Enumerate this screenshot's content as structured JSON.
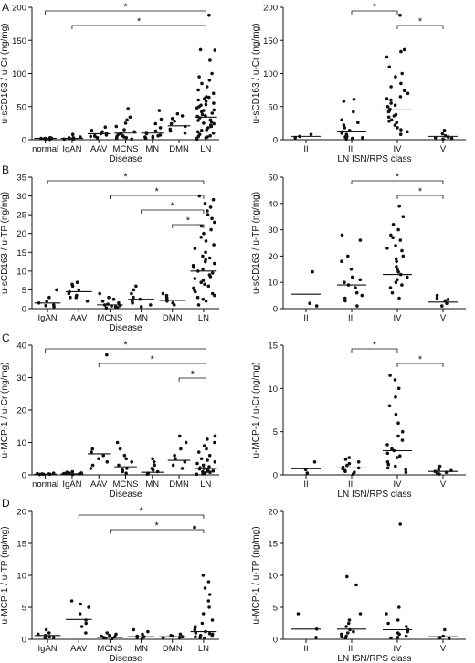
{
  "panel_letters": [
    "A",
    "B",
    "C",
    "D"
  ],
  "chart_data": [
    {
      "type": "scatter",
      "panel": "A",
      "ylabel": "u-sCD163 / u-Cr (ng/mg)",
      "xlabel": "Disease",
      "ylim": [
        0,
        200
      ],
      "yticks": [
        0,
        50,
        100,
        150,
        200
      ],
      "categories": [
        "normal",
        "IgAN",
        "AAV",
        "MCNS",
        "MN",
        "DMN",
        "LN"
      ],
      "medians": [
        2,
        2,
        9,
        10,
        10,
        21,
        34
      ],
      "points": [
        [
          0.5,
          1,
          1.5,
          2,
          2.5,
          3,
          2,
          1
        ],
        [
          1,
          2,
          3,
          4,
          8,
          2,
          1,
          2,
          3
        ],
        [
          3,
          5,
          7,
          9,
          10,
          12,
          14,
          19,
          5,
          6
        ],
        [
          1,
          3,
          5,
          8,
          10,
          12,
          15,
          20,
          25,
          30,
          34,
          47,
          2,
          4,
          6,
          9
        ],
        [
          2,
          4,
          6,
          9,
          11,
          13,
          18,
          24,
          31,
          44,
          3,
          7,
          5
        ],
        [
          10,
          13,
          16,
          20,
          24,
          28,
          32,
          36,
          39
        ],
        [
          5,
          10,
          15,
          20,
          25,
          30,
          35,
          40,
          45,
          50,
          55,
          60,
          65,
          70,
          80,
          90,
          100,
          120,
          135,
          136,
          188,
          8,
          12,
          18,
          22,
          27,
          33,
          38,
          42,
          48,
          52,
          58,
          62,
          3,
          6,
          14,
          24,
          29,
          36,
          44,
          53,
          64,
          75,
          85,
          95,
          1,
          2,
          4
        ]
      ],
      "brackets": [
        {
          "from": 0,
          "to": 6,
          "label": "*"
        },
        {
          "from": 1,
          "to": 6,
          "label": "*"
        }
      ]
    },
    {
      "type": "scatter",
      "panel": "A",
      "ylabel": "u-sCD163 / u-Cr (ng/mg)",
      "xlabel": "LN ISN/RPS class",
      "ylim": [
        0,
        200
      ],
      "yticks": [
        0,
        50,
        100,
        150,
        200
      ],
      "categories": [
        "II",
        "III",
        "IV",
        "V"
      ],
      "medians": [
        5,
        13,
        45,
        5
      ],
      "points": [
        [
          3,
          5,
          8
        ],
        [
          1,
          2,
          3,
          4,
          5,
          8,
          10,
          14,
          18,
          22,
          26,
          30,
          42,
          58,
          61,
          6,
          12
        ],
        [
          8,
          12,
          18,
          22,
          26,
          30,
          34,
          38,
          42,
          46,
          50,
          55,
          60,
          65,
          70,
          80,
          95,
          100,
          110,
          125,
          133,
          136,
          188,
          15,
          28,
          36,
          44,
          52,
          62,
          74,
          85
        ],
        [
          1,
          2,
          4,
          6,
          9,
          14,
          3
        ]
      ],
      "brackets": [
        {
          "from": 1,
          "to": 2,
          "label": "*"
        },
        {
          "from": 2,
          "to": 3,
          "label": "*"
        }
      ]
    },
    {
      "type": "scatter",
      "panel": "B",
      "ylabel": "u-sCD163 / u-TP (ng/mg)",
      "xlabel": "Disease",
      "ylim": [
        0,
        35
      ],
      "yticks": [
        0,
        5,
        10,
        15,
        20,
        25,
        30,
        35
      ],
      "categories": [
        "IgAN",
        "AAV",
        "MCNS",
        "MN",
        "DMN",
        "LN"
      ],
      "medians": [
        1.5,
        4.5,
        1,
        2.5,
        2.2,
        10
      ],
      "points": [
        [
          0.5,
          1,
          1.5,
          2,
          3,
          5,
          0.8
        ],
        [
          2,
          3,
          3.5,
          4,
          4.5,
          5,
          6,
          6.5,
          7,
          3
        ],
        [
          0.2,
          0.5,
          0.8,
          1,
          1.2,
          1.5,
          2,
          2.5,
          3,
          4,
          0.3,
          0.7
        ],
        [
          0.5,
          1,
          2,
          2.5,
          3,
          4,
          5,
          6,
          1.5
        ],
        [
          1,
          1.5,
          2,
          2.5,
          3,
          4,
          3.5
        ],
        [
          1,
          2,
          3,
          4,
          5,
          6,
          7,
          8,
          9,
          10,
          11,
          12,
          13,
          14,
          15,
          16,
          17,
          18,
          19,
          20,
          21,
          22,
          23,
          24,
          25,
          26,
          27,
          28,
          29,
          30,
          5.5,
          7.5,
          9.5,
          11.5,
          13.5,
          2.5,
          4.5,
          8.5,
          10.5,
          12.5,
          3.5,
          6.5
        ]
      ],
      "brackets": [
        {
          "from": 0,
          "to": 5,
          "label": "*"
        },
        {
          "from": 2,
          "to": 5,
          "label": "*"
        },
        {
          "from": 3,
          "to": 5,
          "label": "*"
        },
        {
          "from": 4,
          "to": 5,
          "label": "*"
        }
      ]
    },
    {
      "type": "scatter",
      "panel": "B",
      "ylabel": "u-sCD163 / u-TP (ng/mg)",
      "xlabel": "",
      "ylim": [
        0,
        50
      ],
      "yticks": [
        0,
        10,
        20,
        30,
        40,
        50
      ],
      "categories": [
        "II",
        "III",
        "IV",
        "V"
      ],
      "medians": [
        5.5,
        9,
        13,
        2.5
      ],
      "points": [
        [
          1,
          2,
          14
        ],
        [
          1,
          3,
          5,
          6,
          8,
          9,
          10,
          11,
          12,
          15,
          18,
          20,
          26,
          28,
          4
        ],
        [
          4,
          6,
          8,
          10,
          12,
          13,
          14,
          16,
          18,
          20,
          22,
          24,
          26,
          28,
          30,
          32,
          35,
          39,
          9,
          11,
          15,
          19,
          23,
          27
        ],
        [
          1,
          2,
          3,
          4,
          5,
          3.5
        ]
      ],
      "brackets": [
        {
          "from": 1,
          "to": 3,
          "label": "*"
        },
        {
          "from": 2,
          "to": 3,
          "label": "*"
        }
      ]
    },
    {
      "type": "scatter",
      "panel": "C",
      "ylabel": "u-MCP-1 / u-Cr (ng/mg)",
      "xlabel": "Disease",
      "ylim": [
        0,
        40
      ],
      "yticks": [
        0,
        10,
        20,
        30,
        40
      ],
      "categories": [
        "normal",
        "IgAN",
        "AAV",
        "MCNS",
        "MN",
        "DMN",
        "LN"
      ],
      "medians": [
        0.2,
        0.3,
        6.5,
        2.5,
        0.8,
        4.5,
        2
      ],
      "points": [
        [
          0.1,
          0.2,
          0.3,
          0.4,
          0.5,
          0.2,
          0.3
        ],
        [
          0.1,
          0.3,
          0.5,
          0.8,
          1,
          0.4,
          0.6
        ],
        [
          2,
          3,
          4,
          5,
          6,
          7,
          8,
          37
        ],
        [
          0.5,
          1,
          1.5,
          2,
          3,
          4,
          5,
          6,
          8,
          10
        ],
        [
          0.2,
          0.5,
          1,
          1.5,
          2,
          3,
          4,
          5
        ],
        [
          2,
          3,
          4,
          5,
          6,
          8,
          10,
          12
        ],
        [
          0.2,
          0.5,
          1,
          1.5,
          2,
          2.5,
          3,
          4,
          5,
          6,
          7,
          8,
          9,
          10,
          11,
          12,
          0.8,
          1.2,
          1.8,
          2.2,
          3.5,
          4.5,
          0.3,
          0.6,
          1.1
        ]
      ],
      "brackets": [
        {
          "from": 0,
          "to": 6,
          "label": "*"
        },
        {
          "from": 2,
          "to": 6,
          "label": "*"
        },
        {
          "from": 5,
          "to": 6,
          "label": "*"
        }
      ]
    },
    {
      "type": "scatter",
      "panel": "C",
      "ylabel": "u-MCP-1 / u-Cr (ng/mg)",
      "xlabel": "LN ISN/RPS class",
      "ylim": [
        0,
        15
      ],
      "yticks": [
        0,
        5,
        10,
        15
      ],
      "categories": [
        "II",
        "III",
        "IV",
        "V"
      ],
      "medians": [
        0.7,
        0.8,
        2.8,
        0.4
      ],
      "points": [
        [
          0.2,
          1.5,
          0.6
        ],
        [
          0.1,
          0.3,
          0.5,
          0.7,
          0.9,
          1.1,
          1.3,
          1.5,
          1.8,
          2,
          0.4,
          0.8
        ],
        [
          0.3,
          0.6,
          1,
          1.5,
          2,
          2.5,
          3,
          3.5,
          4,
          5,
          6,
          7,
          8,
          9,
          10,
          11,
          11.5,
          1.2,
          2.2,
          2.8,
          4.5,
          0.8
        ],
        [
          0.1,
          0.2,
          0.3,
          0.4,
          0.5,
          0.6,
          1
        ]
      ],
      "brackets": [
        {
          "from": 1,
          "to": 2,
          "label": "*"
        },
        {
          "from": 2,
          "to": 3,
          "label": "*"
        }
      ]
    },
    {
      "type": "scatter",
      "panel": "D",
      "ylabel": "u-MCP-1 / u-TP (ng/mg)",
      "xlabel": "Disease",
      "ylim": [
        0,
        20
      ],
      "yticks": [
        0,
        5,
        10,
        15,
        20
      ],
      "categories": [
        "IgAN",
        "AAV",
        "MCNS",
        "MN",
        "DMN",
        "LN"
      ],
      "medians": [
        0.6,
        3.1,
        0.3,
        0.4,
        0.4,
        1.2
      ],
      "points": [
        [
          0.2,
          0.4,
          0.6,
          0.8,
          1,
          1.5,
          0.3
        ],
        [
          1,
          2,
          3,
          4,
          5,
          5.5,
          6,
          2.5
        ],
        [
          0.1,
          0.2,
          0.3,
          0.4,
          0.5,
          0.6,
          0.8,
          1
        ],
        [
          0.1,
          0.3,
          0.5,
          0.8,
          1.2,
          1.5,
          0.4
        ],
        [
          0.2,
          0.3,
          0.5,
          0.6,
          0.8,
          0.4
        ],
        [
          0.2,
          0.5,
          0.8,
          1,
          1.5,
          2,
          2.5,
          3,
          4,
          5,
          6,
          7,
          8,
          9,
          10,
          17.5,
          0.3,
          0.6,
          1.2,
          1.8,
          0.4,
          0.9
        ]
      ],
      "brackets": [
        {
          "from": 1,
          "to": 5,
          "label": "*"
        },
        {
          "from": 2,
          "to": 5,
          "label": "*"
        }
      ]
    },
    {
      "type": "scatter",
      "panel": "D",
      "ylabel": "u-MCP-1 / u-TP (ng/mg)",
      "xlabel": "LN ISN/RPS class",
      "ylim": [
        0,
        20
      ],
      "yticks": [
        0,
        5,
        10,
        15,
        20
      ],
      "categories": [
        "II",
        "III",
        "IV",
        "V"
      ],
      "medians": [
        1.6,
        1.6,
        1.5,
        0.4
      ],
      "points": [
        [
          0.3,
          1.6,
          4
        ],
        [
          0.2,
          0.5,
          0.8,
          1,
          1.2,
          1.5,
          2,
          2.5,
          3,
          4,
          8.5,
          9.8,
          0.4
        ],
        [
          0.2,
          0.5,
          0.8,
          1,
          1.5,
          2,
          2.5,
          3,
          4,
          5,
          18,
          0.3,
          1.2
        ],
        [
          0.1,
          0.2,
          0.3,
          0.5,
          1.5
        ]
      ],
      "brackets": []
    }
  ]
}
